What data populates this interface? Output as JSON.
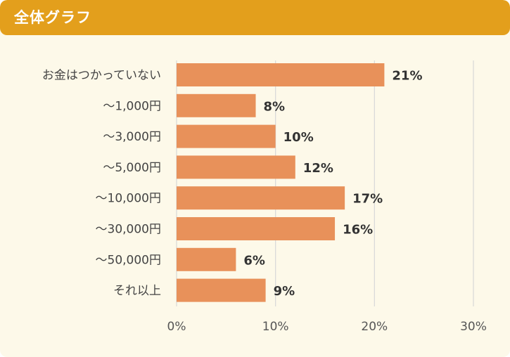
{
  "header": {
    "title": "全体グラフ"
  },
  "colors": {
    "header": "#e39f1c",
    "background": "#fdf9e9",
    "bar": "#e8915a",
    "grid": "#d8d8d8"
  },
  "chart_data": {
    "type": "bar",
    "orientation": "horizontal",
    "categories": [
      "お金はつかっていない",
      "～1,000円",
      "～3,000円",
      "～5,000円",
      "～10,000円",
      "～30,000円",
      "～50,000円",
      "それ以上"
    ],
    "values": [
      21,
      8,
      10,
      12,
      17,
      16,
      6,
      9
    ],
    "value_labels": [
      "21%",
      "8%",
      "10%",
      "12%",
      "17%",
      "16%",
      "6%",
      "9%"
    ],
    "xlim": [
      0,
      30
    ],
    "xticks": [
      0,
      10,
      20,
      30
    ],
    "xtick_labels": [
      "0%",
      "10%",
      "20%",
      "30%"
    ],
    "grid": true,
    "title": "",
    "xlabel": "",
    "ylabel": ""
  }
}
